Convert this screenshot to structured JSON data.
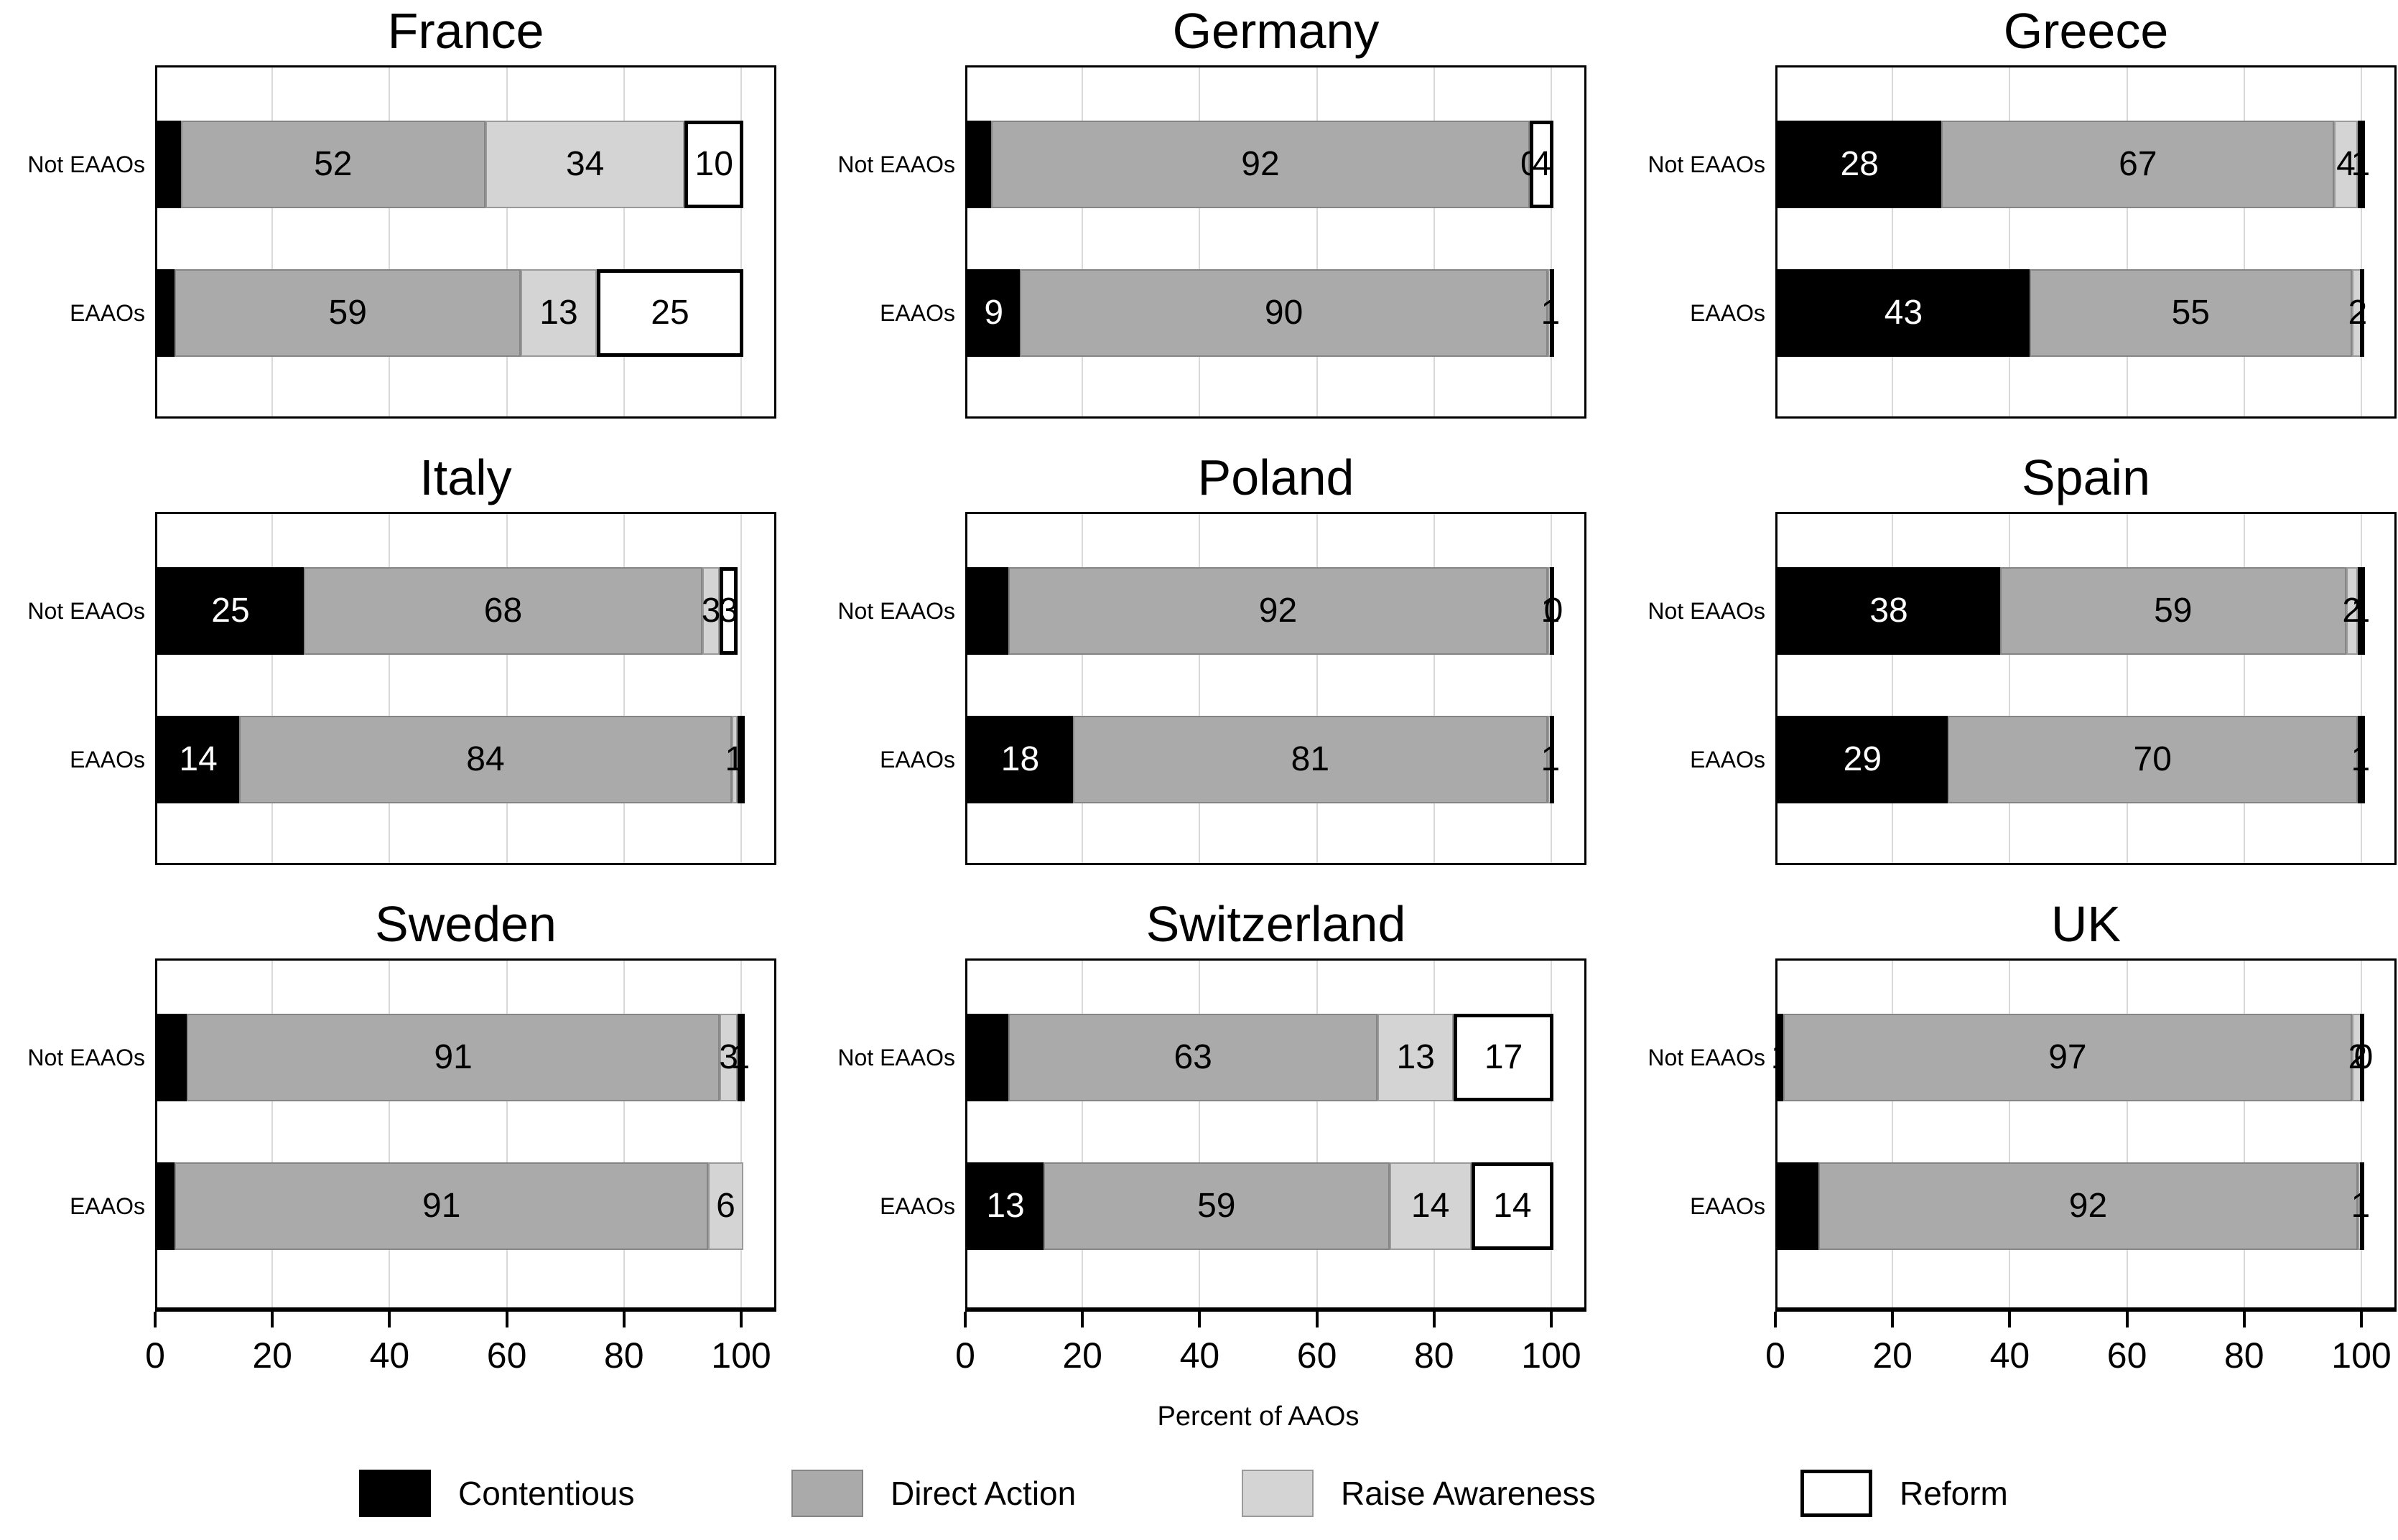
{
  "chart_data": {
    "type": "bar",
    "stacked": true,
    "orientation": "horizontal",
    "xlabel": "Percent of AAOs",
    "x_ticks": [
      0,
      20,
      40,
      60,
      80,
      100
    ],
    "xlim": [
      0,
      100
    ],
    "grid": "vertical-light",
    "legend_position": "bottom",
    "row_labels": [
      "Not EAAOs",
      "EAAOs"
    ],
    "categories": [
      {
        "name": "Contentious",
        "color": "#000000"
      },
      {
        "name": "Direct Action",
        "color": "#aaaaaa"
      },
      {
        "name": "Raise Awareness",
        "color": "#d4d4d4"
      },
      {
        "name": "Reform",
        "color": "#ffffff"
      }
    ],
    "facets": [
      {
        "country": "France",
        "bars": [
          {
            "group": "Not EAAOs",
            "cap": false,
            "segments": [
              {
                "category": "Contentious",
                "value": 4,
                "label": ""
              },
              {
                "category": "Direct Action",
                "value": 52,
                "label": "52"
              },
              {
                "category": "Raise Awareness",
                "value": 34,
                "label": "34"
              },
              {
                "category": "Reform",
                "value": 10,
                "label": "10"
              }
            ]
          },
          {
            "group": "EAAOs",
            "cap": false,
            "segments": [
              {
                "category": "Contentious",
                "value": 3,
                "label": ""
              },
              {
                "category": "Direct Action",
                "value": 59,
                "label": "59"
              },
              {
                "category": "Raise Awareness",
                "value": 13,
                "label": "13"
              },
              {
                "category": "Reform",
                "value": 25,
                "label": "25"
              }
            ]
          }
        ]
      },
      {
        "country": "Germany",
        "bars": [
          {
            "group": "Not EAAOs",
            "cap": false,
            "segments": [
              {
                "category": "Contentious",
                "value": 4,
                "label": ""
              },
              {
                "category": "Direct Action",
                "value": 92,
                "label": "92"
              },
              {
                "category": "Raise Awareness",
                "value": 0,
                "label": "0"
              },
              {
                "category": "Reform",
                "value": 4,
                "label": "4"
              }
            ]
          },
          {
            "group": "EAAOs",
            "cap": true,
            "segments": [
              {
                "category": "Contentious",
                "value": 9,
                "label": "9"
              },
              {
                "category": "Direct Action",
                "value": 90,
                "label": "90"
              },
              {
                "category": "Raise Awareness",
                "value": 1,
                "label": "1"
              },
              {
                "category": "Reform",
                "value": 0,
                "label": ""
              }
            ]
          }
        ]
      },
      {
        "country": "Greece",
        "bars": [
          {
            "group": "Not EAAOs",
            "cap": false,
            "segments": [
              {
                "category": "Contentious",
                "value": 28,
                "label": "28"
              },
              {
                "category": "Direct Action",
                "value": 67,
                "label": "67"
              },
              {
                "category": "Raise Awareness",
                "value": 4,
                "label": "4"
              },
              {
                "category": "Reform",
                "value": 1,
                "label": "1"
              }
            ]
          },
          {
            "group": "EAAOs",
            "cap": true,
            "segments": [
              {
                "category": "Contentious",
                "value": 43,
                "label": "43"
              },
              {
                "category": "Direct Action",
                "value": 55,
                "label": "55"
              },
              {
                "category": "Raise Awareness",
                "value": 2,
                "label": "2"
              },
              {
                "category": "Reform",
                "value": 0,
                "label": ""
              }
            ]
          }
        ]
      },
      {
        "country": "Italy",
        "bars": [
          {
            "group": "Not EAAOs",
            "cap": false,
            "segments": [
              {
                "category": "Contentious",
                "value": 25,
                "label": "25"
              },
              {
                "category": "Direct Action",
                "value": 68,
                "label": "68"
              },
              {
                "category": "Raise Awareness",
                "value": 3,
                "label": "3"
              },
              {
                "category": "Reform",
                "value": 3,
                "label": "3"
              }
            ]
          },
          {
            "group": "EAAOs",
            "cap": false,
            "segments": [
              {
                "category": "Contentious",
                "value": 14,
                "label": "14"
              },
              {
                "category": "Direct Action",
                "value": 84,
                "label": "84"
              },
              {
                "category": "Raise Awareness",
                "value": 1,
                "label": "1"
              },
              {
                "category": "Reform",
                "value": 1,
                "label": ""
              }
            ]
          }
        ]
      },
      {
        "country": "Poland",
        "bars": [
          {
            "group": "Not EAAOs",
            "cap": true,
            "segments": [
              {
                "category": "Contentious",
                "value": 7,
                "label": ""
              },
              {
                "category": "Direct Action",
                "value": 92,
                "label": "92"
              },
              {
                "category": "Raise Awareness",
                "value": 1,
                "label": "1"
              },
              {
                "category": "Reform",
                "value": 0,
                "label": "0"
              }
            ]
          },
          {
            "group": "EAAOs",
            "cap": true,
            "segments": [
              {
                "category": "Contentious",
                "value": 18,
                "label": "18"
              },
              {
                "category": "Direct Action",
                "value": 81,
                "label": "81"
              },
              {
                "category": "Raise Awareness",
                "value": 1,
                "label": "1"
              },
              {
                "category": "Reform",
                "value": 0,
                "label": ""
              }
            ]
          }
        ]
      },
      {
        "country": "Spain",
        "bars": [
          {
            "group": "Not EAAOs",
            "cap": false,
            "segments": [
              {
                "category": "Contentious",
                "value": 38,
                "label": "38"
              },
              {
                "category": "Direct Action",
                "value": 59,
                "label": "59"
              },
              {
                "category": "Raise Awareness",
                "value": 2,
                "label": "2"
              },
              {
                "category": "Reform",
                "value": 1,
                "label": "1"
              }
            ]
          },
          {
            "group": "EAAOs",
            "cap": false,
            "segments": [
              {
                "category": "Contentious",
                "value": 29,
                "label": "29"
              },
              {
                "category": "Direct Action",
                "value": 70,
                "label": "70"
              },
              {
                "category": "Raise Awareness",
                "value": 0,
                "label": ""
              },
              {
                "category": "Reform",
                "value": 1,
                "label": "1"
              }
            ]
          }
        ]
      },
      {
        "country": "Sweden",
        "bars": [
          {
            "group": "Not EAAOs",
            "cap": false,
            "segments": [
              {
                "category": "Contentious",
                "value": 5,
                "label": ""
              },
              {
                "category": "Direct Action",
                "value": 91,
                "label": "91"
              },
              {
                "category": "Raise Awareness",
                "value": 3,
                "label": "3"
              },
              {
                "category": "Reform",
                "value": 1,
                "label": "1"
              }
            ]
          },
          {
            "group": "EAAOs",
            "cap": false,
            "segments": [
              {
                "category": "Contentious",
                "value": 3,
                "label": ""
              },
              {
                "category": "Direct Action",
                "value": 91,
                "label": "91"
              },
              {
                "category": "Raise Awareness",
                "value": 6,
                "label": "6"
              },
              {
                "category": "Reform",
                "value": 0,
                "label": ""
              }
            ]
          }
        ]
      },
      {
        "country": "Switzerland",
        "bars": [
          {
            "group": "Not EAAOs",
            "cap": false,
            "segments": [
              {
                "category": "Contentious",
                "value": 7,
                "label": ""
              },
              {
                "category": "Direct Action",
                "value": 63,
                "label": "63"
              },
              {
                "category": "Raise Awareness",
                "value": 13,
                "label": "13"
              },
              {
                "category": "Reform",
                "value": 17,
                "label": "17"
              }
            ]
          },
          {
            "group": "EAAOs",
            "cap": false,
            "segments": [
              {
                "category": "Contentious",
                "value": 13,
                "label": "13"
              },
              {
                "category": "Direct Action",
                "value": 59,
                "label": "59"
              },
              {
                "category": "Raise Awareness",
                "value": 14,
                "label": "14"
              },
              {
                "category": "Reform",
                "value": 14,
                "label": "14"
              }
            ]
          }
        ]
      },
      {
        "country": "UK",
        "bars": [
          {
            "group": "Not EAAOs",
            "cap": true,
            "segments": [
              {
                "category": "Contentious",
                "value": 1,
                "label": "1"
              },
              {
                "category": "Direct Action",
                "value": 97,
                "label": "97"
              },
              {
                "category": "Raise Awareness",
                "value": 2,
                "label": "2"
              },
              {
                "category": "Reform",
                "value": 0,
                "label": "0"
              }
            ]
          },
          {
            "group": "EAAOs",
            "cap": true,
            "segments": [
              {
                "category": "Contentious",
                "value": 7,
                "label": ""
              },
              {
                "category": "Direct Action",
                "value": 92,
                "label": "92"
              },
              {
                "category": "Raise Awareness",
                "value": 1,
                "label": "1"
              },
              {
                "category": "Reform",
                "value": 0,
                "label": ""
              }
            ]
          }
        ]
      }
    ]
  }
}
